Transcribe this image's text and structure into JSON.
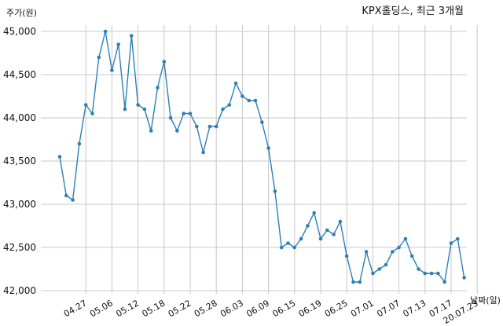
{
  "chart_data": {
    "type": "line",
    "title": "KPX홀딩스, 최근 3개월",
    "ylabel": "주가(원)",
    "xlabel": "날짜(일)",
    "ylim": [
      42000,
      45000
    ],
    "yticks": [
      42000,
      42500,
      43000,
      43500,
      44000,
      44500,
      45000
    ],
    "ytick_labels": [
      "42,000",
      "42,500",
      "43,000",
      "43,500",
      "44,000",
      "44,500",
      "45,000"
    ],
    "xtick_labels": [
      "04.27",
      "05.06",
      "05.12",
      "05.18",
      "05.22",
      "05.28",
      "06.03",
      "06.09",
      "06.15",
      "06.19",
      "06.25",
      "07.01",
      "07.07",
      "07.13",
      "07.17",
      "20.07.23"
    ],
    "xtick_index": [
      4,
      8,
      12,
      16,
      20,
      24,
      28,
      32,
      36,
      40,
      44,
      48,
      52,
      56,
      60,
      64
    ],
    "grid": true,
    "color": "#2f7fb5",
    "values": [
      43550,
      43100,
      43050,
      43700,
      44150,
      44050,
      44700,
      45000,
      44550,
      44850,
      44100,
      44950,
      44150,
      44100,
      43850,
      44350,
      44650,
      44000,
      43850,
      44050,
      44050,
      43900,
      43600,
      43900,
      43900,
      44100,
      44150,
      44400,
      44250,
      44200,
      44200,
      43950,
      43650,
      43150,
      42500,
      42550,
      42500,
      42600,
      42750,
      42900,
      42600,
      42700,
      42650,
      42800,
      42400,
      42100,
      42100,
      42450,
      42200,
      42250,
      42300,
      42450,
      42500,
      42600,
      42400,
      42250,
      42200,
      42200,
      42200,
      42100,
      42550,
      42600,
      42150
    ]
  }
}
